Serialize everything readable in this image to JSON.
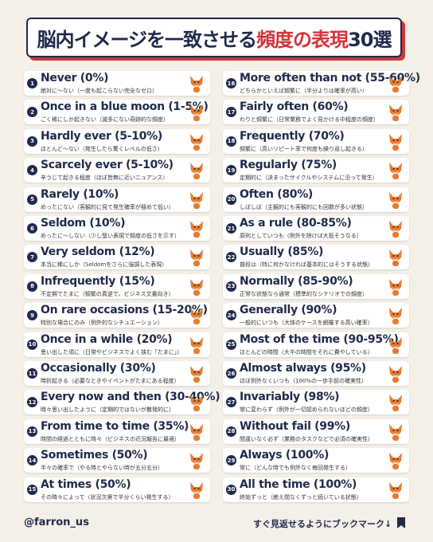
{
  "header": {
    "title_part1": "脳内イメージを一致させる",
    "title_part2": "頻度の表現",
    "title_part3": "30選"
  },
  "items": [
    {
      "number": 1,
      "phrase": "Never (0%)",
      "description": "絶対に〜ない（一度も起こらない完全なゼロ）"
    },
    {
      "number": 2,
      "phrase": "Once in a blue moon (1-5%)",
      "description": "ごく稀にしか起きない（滅多にない奇跡的な頻度）"
    },
    {
      "number": 3,
      "phrase": "Hardly ever (5-10%)",
      "description": "ほとんど〜ない（発生したら驚くレベルの低さ）"
    },
    {
      "number": 4,
      "phrase": "Scarcely ever (5-10%)",
      "description": "辛うじて起きる程度（ほぼ皆無に近いニュアンス）"
    },
    {
      "number": 5,
      "phrase": "Rarely (10%)",
      "description": "めったにない（客観的に見て発生確率が極めて低い）"
    },
    {
      "number": 6,
      "phrase": "Seldom (10%)",
      "description": "めったに〜しない（少し堅い表現で頻度の低さを示す）"
    },
    {
      "number": 7,
      "phrase": "Very seldom (12%)",
      "description": "本当に稀にしか（Seldomをさらに強調した表現）"
    },
    {
      "number": 8,
      "phrase": "Infrequently (15%)",
      "description": "不定期でたまに（頻繁の真逆で、ビジネス文書向き）"
    },
    {
      "number": 9,
      "phrase": "On rare occasions (15-20%)",
      "description": "特別な場合にのみ（例外的なシチュエーション）"
    },
    {
      "number": 10,
      "phrase": "Once in a while (20%)",
      "description": "思い出した頃に（日常やビジネスでよく挟む「たまに」）"
    },
    {
      "number": 11,
      "phrase": "Occasionally (30%)",
      "description": "時折起きる（必要なときやイベントがたまにある程度）"
    },
    {
      "number": 12,
      "phrase": "Every now and then (30-40%)",
      "description": "時々思い出したように（定期的ではないが散発的に）"
    },
    {
      "number": 13,
      "phrase": "From time to time (35%)",
      "description": "時間の経過とともに時々（ビジネスの近況報告に最適）"
    },
    {
      "number": 14,
      "phrase": "Sometimes (50%)",
      "description": "半々の確率で（やる時とやらない時が五分五分）"
    },
    {
      "number": 15,
      "phrase": "At times (50%)",
      "description": "その時々によって（状況次第で半分くらい発生する）"
    },
    {
      "number": 16,
      "phrase": "More often than not (55-60%)",
      "description": "どちらかといえば頻繁に（半分よりは確率が高い）"
    },
    {
      "number": 17,
      "phrase": "Fairly often (60%)",
      "description": "わりと頻繁に（日常業務でよく見かける中程度の頻度）"
    },
    {
      "number": 18,
      "phrase": "Frequently (70%)",
      "description": "頻繁に（高いリピート率で何度も繰り返し起きる）"
    },
    {
      "number": 19,
      "phrase": "Regularly (75%)",
      "description": "定期的に（決まったサイクルやシステムに沿って発生）"
    },
    {
      "number": 20,
      "phrase": "Often (80%)",
      "description": "しばしば（主観的にも客観的にも回数が多い状態）"
    },
    {
      "number": 21,
      "phrase": "As a rule (80-85%)",
      "description": "原則としていつも（例外を除けば大抵そうなる）"
    },
    {
      "number": 22,
      "phrase": "Usually (85%)",
      "description": "普段は（特に何かなければ基本的にはそうする状態）"
    },
    {
      "number": 23,
      "phrase": "Normally (85-90%)",
      "description": "正常な状態なら通常（標準的なシナリオでの頻度）"
    },
    {
      "number": 24,
      "phrase": "Generally (90%)",
      "description": "一般的にいつも（大体のケースを網羅する高い確率）"
    },
    {
      "number": 25,
      "phrase": "Most of the time (90-95%)",
      "description": "ほとんどの時間（大半の時間をそれに費やしている）"
    },
    {
      "number": 26,
      "phrase": "Almost always (95%)",
      "description": "ほぼ例外なくいつも（100%の一歩手前の確実性）"
    },
    {
      "number": 27,
      "phrase": "Invariably (98%)",
      "description": "常に変わらず（例外が一切認められないほどの頻度）"
    },
    {
      "number": 28,
      "phrase": "Without fail (99%)",
      "description": "間違いなく必ず（業務のタスクなどで必須の確実性）"
    },
    {
      "number": 29,
      "phrase": "Always (100%)",
      "description": "常に（どんな時でも例外なく毎回発生する）"
    },
    {
      "number": 30,
      "phrase": "All the time (100%)",
      "description": "終始ずっと（絶え間なくずっと続いている状態）"
    }
  ],
  "footer": {
    "handle": "@farron_us",
    "cta": "すぐ見返せるようにブックマーク↓"
  }
}
